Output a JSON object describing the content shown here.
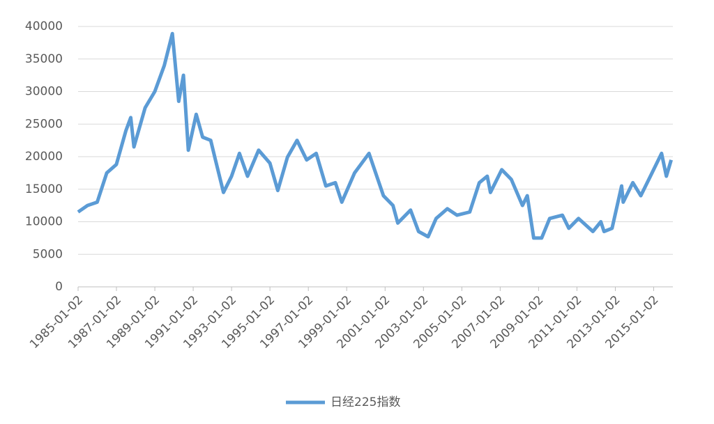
{
  "chart_data": {
    "type": "line",
    "x": [
      "1985-01-02",
      "1985-07-01",
      "1986-01-01",
      "1986-07-01",
      "1987-01-01",
      "1987-07-01",
      "1987-10-01",
      "1987-12-01",
      "1988-07-01",
      "1989-01-01",
      "1989-07-01",
      "1989-12-01",
      "1990-04-01",
      "1990-07-01",
      "1990-10-01",
      "1991-03-01",
      "1991-07-01",
      "1991-12-01",
      "1992-03-01",
      "1992-08-01",
      "1993-01-01",
      "1993-06-01",
      "1993-11-01",
      "1994-06-01",
      "1995-01-01",
      "1995-06-01",
      "1995-12-01",
      "1996-06-01",
      "1996-12-01",
      "1997-06-01",
      "1997-12-01",
      "1998-06-01",
      "1998-10-01",
      "1999-06-01",
      "2000-03-01",
      "2000-12-01",
      "2001-06-01",
      "2001-09-01",
      "2002-05-01",
      "2002-10-01",
      "2003-04-01",
      "2003-09-01",
      "2004-04-01",
      "2004-10-01",
      "2005-06-01",
      "2005-12-01",
      "2006-05-01",
      "2006-07-01",
      "2007-02-01",
      "2007-08-01",
      "2008-03-01",
      "2008-06-01",
      "2008-10-01",
      "2009-03-01",
      "2009-08-01",
      "2010-04-01",
      "2010-08-01",
      "2011-02-01",
      "2011-11-01",
      "2012-04-01",
      "2012-06-01",
      "2012-11-01",
      "2013-05-01",
      "2013-06-01",
      "2013-12-01",
      "2014-05-01",
      "2014-12-01",
      "2015-06-01",
      "2015-09-01",
      "2015-12-01"
    ],
    "series": [
      {
        "name": "日经225指数",
        "color": "#5b9bd5",
        "values": [
          11500,
          12500,
          13000,
          17500,
          18800,
          24000,
          26000,
          21500,
          27500,
          30000,
          34000,
          38900,
          28500,
          32500,
          21000,
          26500,
          23000,
          22500,
          19500,
          14500,
          17000,
          20500,
          17000,
          21000,
          19000,
          14800,
          19900,
          22500,
          19500,
          20500,
          15500,
          16000,
          13000,
          17500,
          20500,
          14000,
          12500,
          9800,
          11800,
          8500,
          7700,
          10500,
          12000,
          11000,
          11500,
          16000,
          17000,
          14500,
          18000,
          16500,
          12500,
          14000,
          7500,
          7500,
          10500,
          11000,
          9000,
          10500,
          8500,
          10000,
          8500,
          9000,
          15500,
          13000,
          16000,
          14000,
          17500,
          20500,
          17000,
          19500
        ]
      }
    ],
    "xlim": [
      "1985-01-02",
      "2016-01-02"
    ],
    "xticks": [
      "1985-01-02",
      "1987-01-02",
      "1989-01-02",
      "1991-01-02",
      "1993-01-02",
      "1995-01-02",
      "1997-01-02",
      "1999-01-02",
      "2001-01-02",
      "2003-01-02",
      "2005-01-02",
      "2007-01-02",
      "2009-01-02",
      "2011-01-02",
      "2013-01-02",
      "2015-01-02"
    ],
    "ylim": [
      0,
      40000
    ],
    "yticks": [
      0,
      5000,
      10000,
      15000,
      20000,
      25000,
      30000,
      35000,
      40000
    ],
    "grid": true
  }
}
